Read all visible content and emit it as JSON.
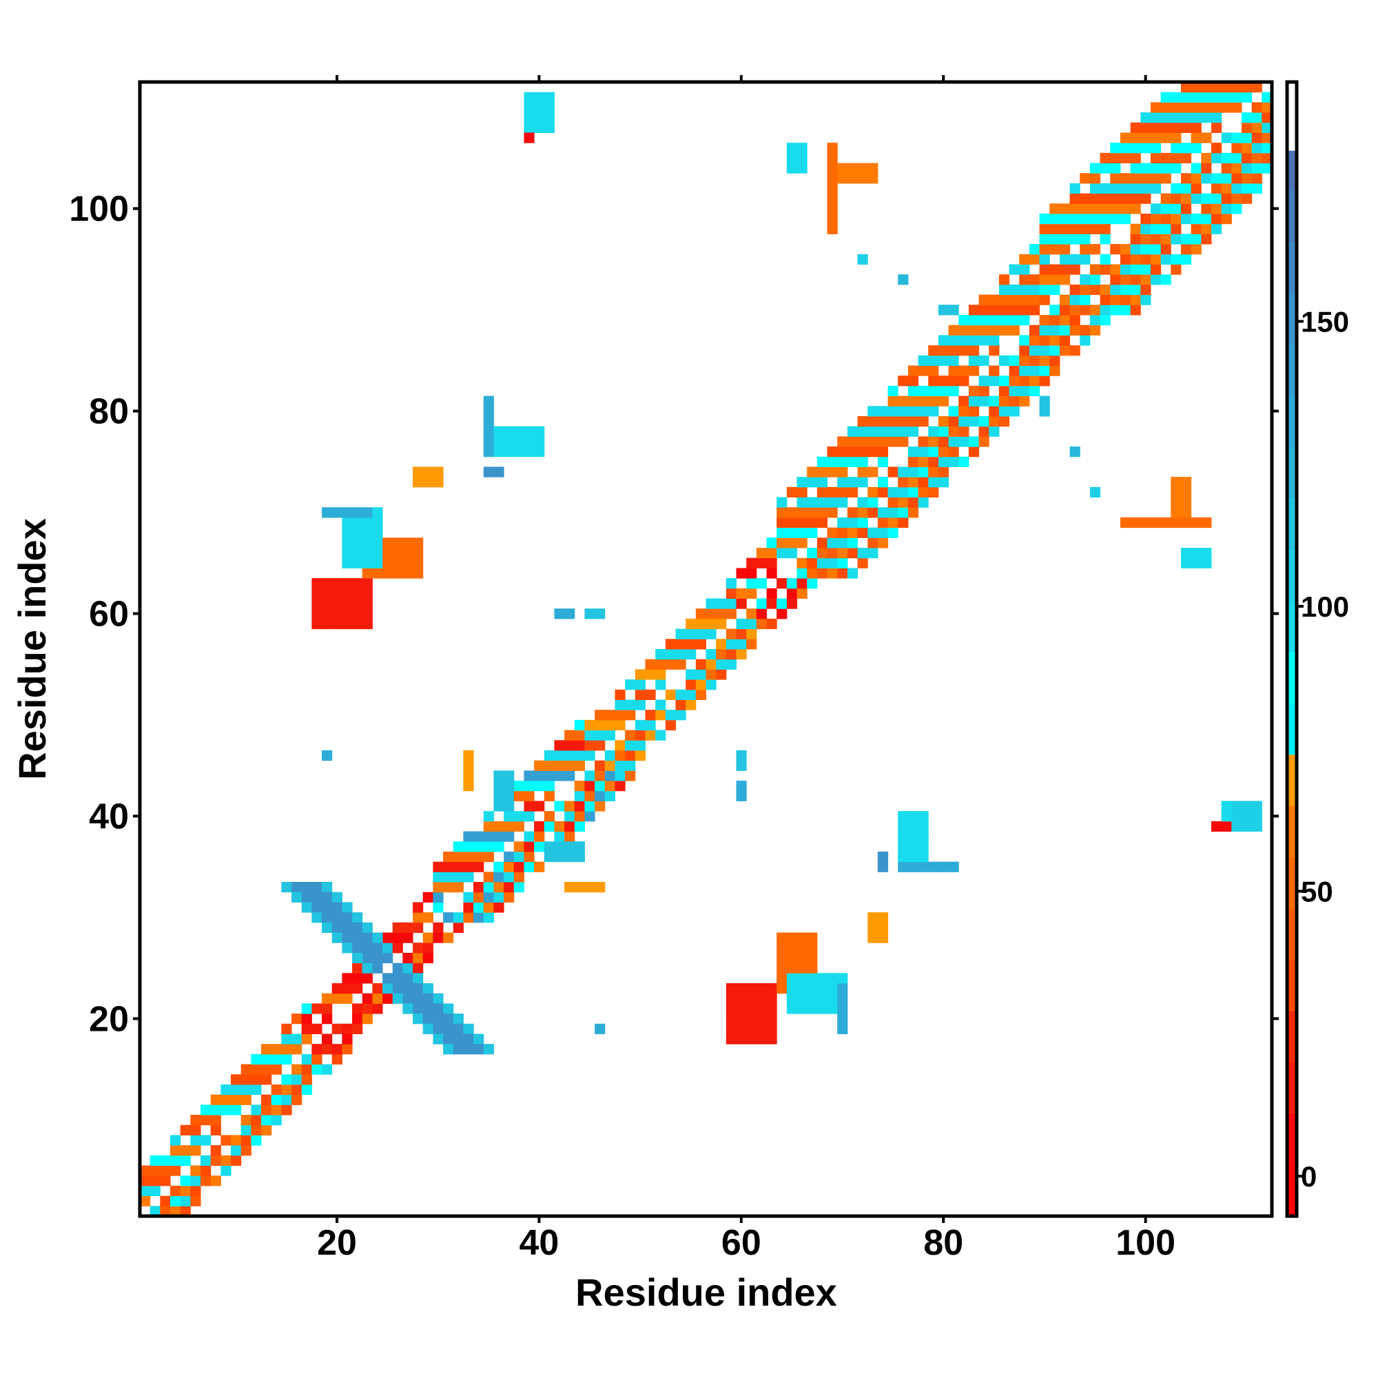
{
  "chart_data": {
    "type": "heatmap",
    "title": "",
    "xlabel": "Residue index",
    "ylabel": "Residue index",
    "xlim": [
      0.5,
      112.5
    ],
    "ylim": [
      0.5,
      112.5
    ],
    "x_ticks": [
      20,
      40,
      60,
      80,
      100
    ],
    "y_ticks": [
      20,
      40,
      60,
      80,
      100
    ],
    "grid": false,
    "colorbar": {
      "range": [
        -7,
        192
      ],
      "ticks": [
        0,
        50,
        100,
        150
      ],
      "bins": [
        {
          "from": -7,
          "to": 2,
          "color": "#ff0000"
        },
        {
          "from": 2,
          "to": 11,
          "color": "#f80808"
        },
        {
          "from": 11,
          "to": 20,
          "color": "#f51a0a"
        },
        {
          "from": 20,
          "to": 29,
          "color": "#f52a0a"
        },
        {
          "from": 29,
          "to": 38,
          "color": "#ff4a00"
        },
        {
          "from": 38,
          "to": 47,
          "color": "#ff5a00"
        },
        {
          "from": 47,
          "to": 56,
          "color": "#ff6a00"
        },
        {
          "from": 56,
          "to": 65,
          "color": "#ff7a00"
        },
        {
          "from": 65,
          "to": 74,
          "color": "#ff9a00"
        },
        {
          "from": 74,
          "to": 83,
          "color": "#00f0ff"
        },
        {
          "from": 83,
          "to": 92,
          "color": "#00ffff"
        },
        {
          "from": 92,
          "to": 101,
          "color": "#18dcec"
        },
        {
          "from": 101,
          "to": 110,
          "color": "#1ed0e6"
        },
        {
          "from": 110,
          "to": 119,
          "color": "#22c4e0"
        },
        {
          "from": 119,
          "to": 128,
          "color": "#28b8dc"
        },
        {
          "from": 128,
          "to": 137,
          "color": "#2eacd8"
        },
        {
          "from": 137,
          "to": 146,
          "color": "#34a0d2"
        },
        {
          "from": 146,
          "to": 155,
          "color": "#3a94cc"
        },
        {
          "from": 155,
          "to": 164,
          "color": "#4088c4"
        },
        {
          "from": 164,
          "to": 173,
          "color": "#467cbc"
        },
        {
          "from": 173,
          "to": 180,
          "color": "#4a72b4"
        },
        {
          "from": 180,
          "to": 192,
          "color": "#ffffff"
        }
      ]
    },
    "diagonal_bands": [
      {
        "from": 1,
        "to": 17,
        "max_offset": 4,
        "values": [
          45,
          88,
          60,
          95,
          30
        ]
      },
      {
        "from": 17,
        "to": 30,
        "max_offset": 3,
        "values": [
          8,
          20,
          60,
          15
        ]
      },
      {
        "from": 30,
        "to": 45,
        "max_offset": 5,
        "values": [
          50,
          90,
          140,
          62,
          100,
          15
        ]
      },
      {
        "from": 45,
        "to": 60,
        "max_offset": 4,
        "values": [
          55,
          92,
          35,
          100,
          65
        ]
      },
      {
        "from": 60,
        "to": 64,
        "max_offset": 4,
        "values": [
          8,
          15,
          60,
          90
        ]
      },
      {
        "from": 64,
        "to": 90,
        "max_offset": 7,
        "values": [
          50,
          92,
          40,
          100,
          62,
          88,
          35
        ]
      },
      {
        "from": 90,
        "to": 112,
        "max_offset": 9,
        "values": [
          45,
          90,
          60,
          30,
          100,
          55,
          88
        ]
      }
    ],
    "clusters": [
      {
        "x": [
          18,
          23
        ],
        "y": [
          59,
          63
        ],
        "value": 12,
        "mirror": true
      },
      {
        "x": [
          23,
          28
        ],
        "y": [
          64,
          67
        ],
        "value": 55,
        "mirror": true
      },
      {
        "x": [
          21,
          24
        ],
        "y": [
          65,
          70
        ],
        "value": 100,
        "mirror": true
      },
      {
        "x": [
          19,
          23
        ],
        "y": [
          70,
          70
        ],
        "value": 130,
        "mirror": true
      },
      {
        "x": [
          28,
          30
        ],
        "y": [
          73,
          74
        ],
        "value": 65,
        "mirror": true
      },
      {
        "x": [
          35,
          35
        ],
        "y": [
          76,
          81
        ],
        "value": 130,
        "mirror": true
      },
      {
        "x": [
          36,
          40
        ],
        "y": [
          76,
          78
        ],
        "value": 100,
        "mirror": true
      },
      {
        "x": [
          35,
          36
        ],
        "y": [
          74,
          74
        ],
        "value": 150,
        "mirror": true
      },
      {
        "x": [
          39,
          41
        ],
        "y": [
          108,
          111
        ],
        "value": 100,
        "mirror": true
      },
      {
        "x": [
          39,
          39
        ],
        "y": [
          107,
          107
        ],
        "value": 5,
        "mirror": true
      },
      {
        "x": [
          65,
          66
        ],
        "y": [
          104,
          106
        ],
        "value": 92,
        "mirror": true
      },
      {
        "x": [
          69,
          69
        ],
        "y": [
          98,
          106
        ],
        "value": 55,
        "mirror": true
      },
      {
        "x": [
          70,
          73
        ],
        "y": [
          103,
          104
        ],
        "value": 62,
        "mirror": true
      },
      {
        "x": [
          72,
          72
        ],
        "y": [
          95,
          95
        ],
        "value": 105,
        "mirror": true
      },
      {
        "x": [
          76,
          76
        ],
        "y": [
          93,
          93
        ],
        "value": 120,
        "mirror": true
      },
      {
        "x": [
          80,
          81
        ],
        "y": [
          90,
          90
        ],
        "value": 115,
        "mirror": true
      },
      {
        "x": [
          36,
          37
        ],
        "y": [
          41,
          44
        ],
        "value": 110,
        "mirror": true
      },
      {
        "x": [
          33,
          33
        ],
        "y": [
          43,
          46
        ],
        "value": 65,
        "mirror": true
      },
      {
        "x": [
          19,
          19
        ],
        "y": [
          46,
          46
        ],
        "value": 130,
        "mirror": true
      },
      {
        "x": [
          42,
          43
        ],
        "y": [
          60,
          60
        ],
        "value": 130,
        "mirror": true
      },
      {
        "x": [
          45,
          46
        ],
        "y": [
          60,
          60
        ],
        "value": 110,
        "mirror": true
      },
      {
        "x": [
          109,
          111
        ],
        "y": [
          39,
          41
        ],
        "value": 105,
        "mirror": false
      },
      {
        "x": [
          107,
          108
        ],
        "y": [
          39,
          39
        ],
        "value": 8,
        "mirror": false
      }
    ],
    "antiparallel": [
      {
        "from": [
          17,
          33
        ],
        "to": [
          33,
          17
        ],
        "width": 2,
        "value": 150,
        "edge_value": 110
      }
    ]
  }
}
